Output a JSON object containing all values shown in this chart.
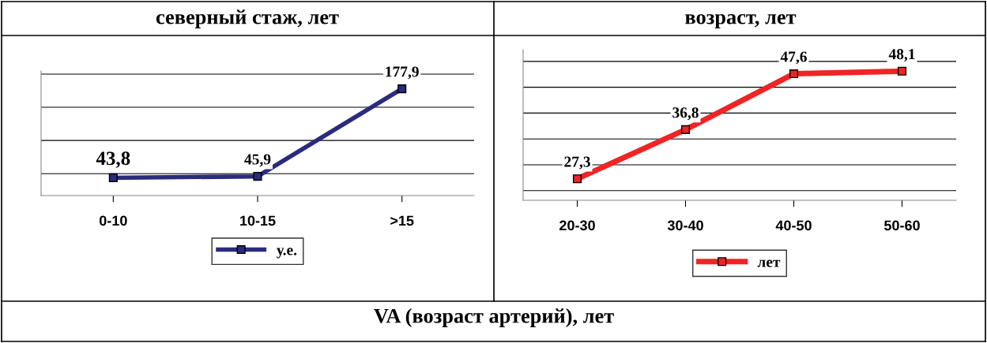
{
  "chart_data": [
    {
      "type": "line",
      "title": "северный стаж, лет",
      "categories": [
        "0-10",
        "10-15",
        ">15"
      ],
      "series": [
        {
          "name": "у.е.",
          "color": "#2b2b7e",
          "values": [
            43.8,
            45.9,
            177.9
          ],
          "value_labels": [
            "43,8",
            "45,9",
            "177,9"
          ]
        }
      ],
      "tick_labels": "x",
      "grid": "y",
      "legend": "bottom",
      "marker": "square",
      "line_style": "solid"
    },
    {
      "type": "line",
      "title": "возраст, лет",
      "categories": [
        "20-30",
        "30-40",
        "40-50",
        "50-60"
      ],
      "series": [
        {
          "name": "лет",
          "color": "#f02424",
          "values": [
            27.3,
            36.8,
            47.6,
            48.1
          ],
          "value_labels": [
            "27,3",
            "36,8",
            "47,6",
            "48,1"
          ]
        }
      ],
      "tick_labels": "x",
      "grid": "y",
      "legend": "bottom",
      "marker": "square",
      "line_style": "solid"
    },
    {
      "type": "other",
      "title": "VA (возраст артерий), лет"
    }
  ]
}
